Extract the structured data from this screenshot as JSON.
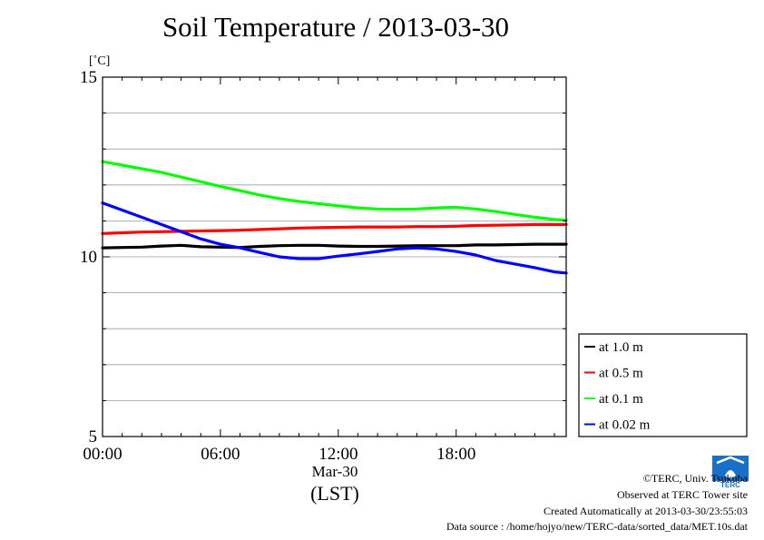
{
  "title": "Soil Temperature / 2013-03-30",
  "ylabel": "[˚C]",
  "xlabel_date": "Mar-30",
  "xlabel_unit": "(LST)",
  "colors": {
    "at_1_0": "#000000",
    "at_0_5": "#ff0000",
    "at_0_1": "#00ff00",
    "at_0_02": "#0000ff",
    "grid": "#9a9a9a"
  },
  "credits": {
    "copyright": "©TERC, Univ. Tsukuba",
    "observed": "Observed at TERC Tower site",
    "created": "Created Automatically at 2013-03-30/23:55:03",
    "source": "Data source : /home/hojyo/new/TERC-data/sorted_data/MET.10s.dat"
  },
  "logo_text": "TERC",
  "chart_data": {
    "type": "line",
    "title": "Soil Temperature / 2013-03-30",
    "ylabel": "[˚C]",
    "xlabel": "Mar-30 (LST)",
    "xlim": [
      0,
      23.6
    ],
    "ylim": [
      5,
      15
    ],
    "yticks": [
      5,
      10,
      15
    ],
    "xtick_labels": [
      "00:00",
      "06:00",
      "12:00",
      "18:00"
    ],
    "xtick_values": [
      0,
      6,
      12,
      18
    ],
    "grid": true,
    "legend_position": "right, lower",
    "series": [
      {
        "name": "at 1.0 m",
        "color": "#000000",
        "x": [
          0,
          1,
          2,
          3,
          4,
          5,
          6,
          7,
          8,
          9,
          10,
          11,
          12,
          13,
          14,
          15,
          16,
          17,
          18,
          19,
          20,
          21,
          22,
          23,
          23.6
        ],
        "y": [
          10.25,
          10.26,
          10.27,
          10.3,
          10.32,
          10.28,
          10.27,
          10.26,
          10.29,
          10.31,
          10.32,
          10.32,
          10.3,
          10.29,
          10.29,
          10.3,
          10.31,
          10.31,
          10.31,
          10.33,
          10.33,
          10.34,
          10.35,
          10.35,
          10.35
        ]
      },
      {
        "name": "at 0.5 m",
        "color": "#ff0000",
        "x": [
          0,
          1,
          2,
          3,
          4,
          5,
          6,
          7,
          8,
          9,
          10,
          11,
          12,
          13,
          14,
          15,
          16,
          17,
          18,
          19,
          20,
          21,
          22,
          23,
          23.6
        ],
        "y": [
          10.65,
          10.67,
          10.69,
          10.7,
          10.71,
          10.72,
          10.73,
          10.74,
          10.76,
          10.78,
          10.8,
          10.81,
          10.82,
          10.83,
          10.83,
          10.83,
          10.84,
          10.84,
          10.85,
          10.87,
          10.88,
          10.89,
          10.9,
          10.9,
          10.9
        ]
      },
      {
        "name": "at 0.1 m",
        "color": "#00ff00",
        "x": [
          0,
          1,
          2,
          3,
          4,
          5,
          6,
          7,
          8,
          9,
          10,
          11,
          12,
          13,
          14,
          15,
          16,
          17,
          18,
          19,
          20,
          21,
          22,
          23,
          23.6
        ],
        "y": [
          12.65,
          12.55,
          12.45,
          12.35,
          12.22,
          12.09,
          11.96,
          11.84,
          11.72,
          11.62,
          11.54,
          11.48,
          11.42,
          11.36,
          11.33,
          11.32,
          11.33,
          11.36,
          11.38,
          11.33,
          11.26,
          11.18,
          11.1,
          11.04,
          11.02
        ]
      },
      {
        "name": "at 0.02 m",
        "color": "#0000ff",
        "x": [
          0,
          1,
          2,
          3,
          4,
          5,
          6,
          7,
          8,
          9,
          10,
          11,
          12,
          13,
          14,
          15,
          16,
          17,
          18,
          19,
          20,
          21,
          22,
          23,
          23.6
        ],
        "y": [
          11.5,
          11.3,
          11.1,
          10.9,
          10.7,
          10.5,
          10.35,
          10.25,
          10.12,
          10.0,
          9.95,
          9.95,
          10.02,
          10.08,
          10.15,
          10.22,
          10.25,
          10.22,
          10.15,
          10.05,
          9.9,
          9.8,
          9.7,
          9.58,
          9.55
        ]
      }
    ]
  }
}
